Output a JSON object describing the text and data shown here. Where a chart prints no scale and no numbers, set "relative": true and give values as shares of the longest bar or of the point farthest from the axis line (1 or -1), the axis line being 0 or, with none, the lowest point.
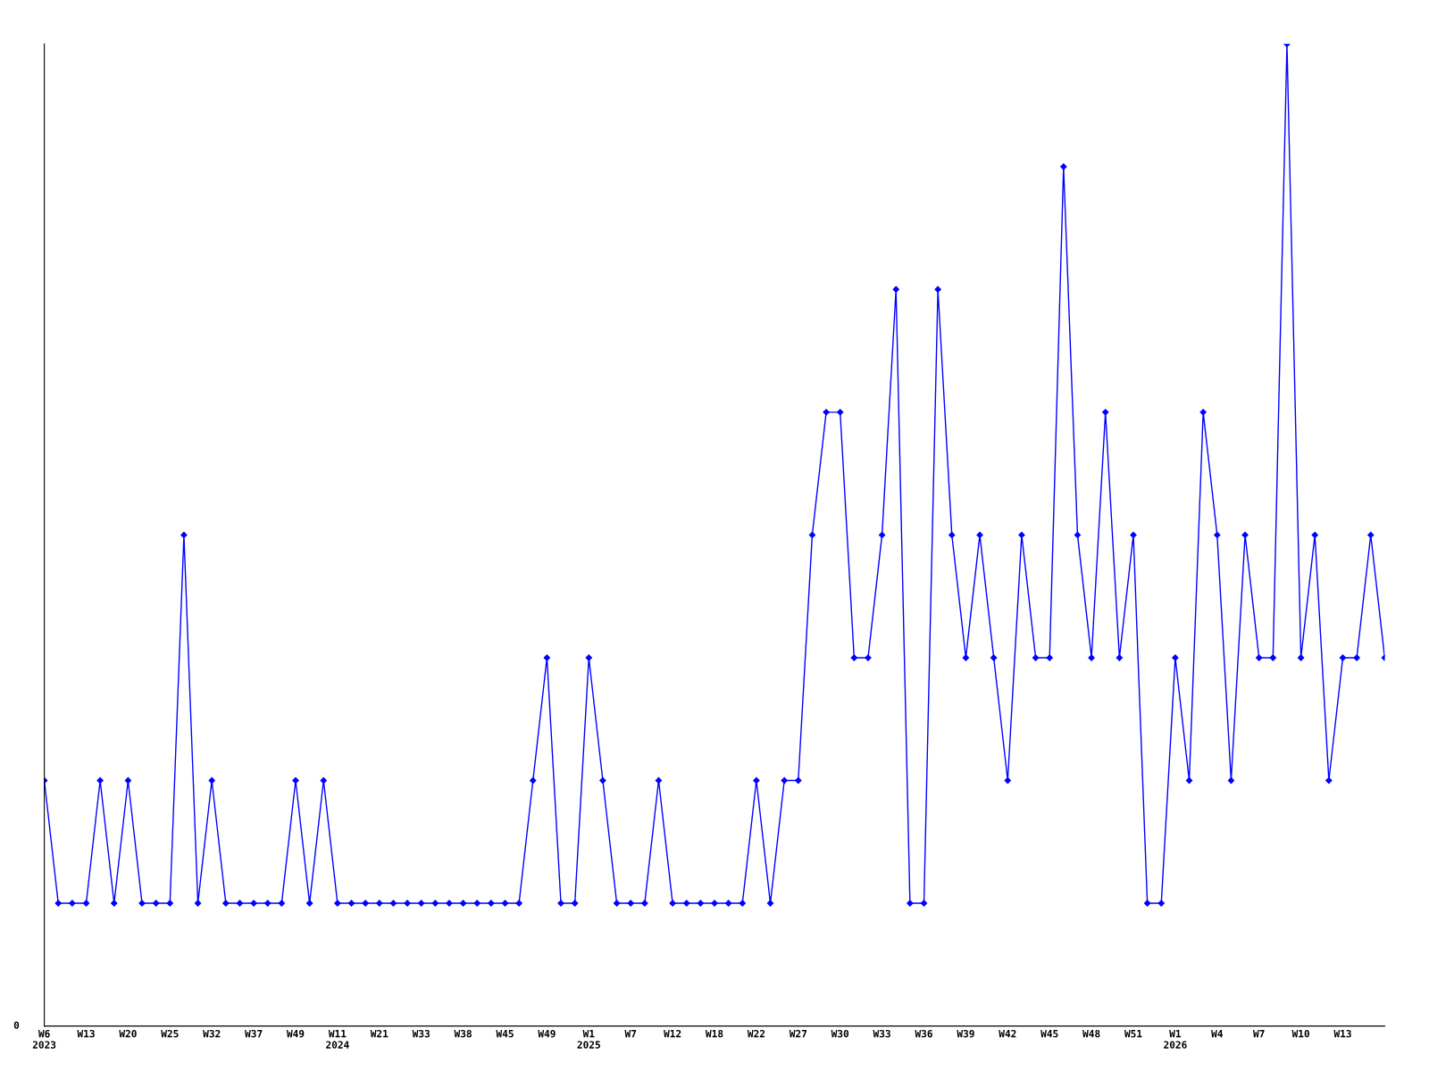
{
  "chart_data": {
    "type": "line",
    "relative": true,
    "marker": "diamond",
    "line_style": "solid",
    "grid": false,
    "legend": false,
    "annotations": [
      "0"
    ],
    "categories": [
      "W6\n2023",
      null,
      null,
      "W13",
      null,
      null,
      "W20",
      null,
      null,
      "W25",
      null,
      null,
      "W32",
      null,
      null,
      "W37",
      null,
      null,
      "W49",
      null,
      null,
      "W11\n2024",
      null,
      null,
      "W21",
      null,
      null,
      "W33",
      null,
      null,
      "W38",
      null,
      null,
      "W45",
      null,
      null,
      "W49",
      null,
      null,
      "W1\n2025",
      null,
      null,
      "W7",
      null,
      null,
      "W12",
      null,
      null,
      "W18",
      null,
      null,
      "W22",
      null,
      null,
      "W27",
      null,
      null,
      "W30",
      null,
      null,
      "W33",
      null,
      null,
      "W36",
      null,
      null,
      "W39",
      null,
      null,
      "W42",
      null,
      null,
      "W45",
      null,
      null,
      "W48",
      null,
      null,
      "W51",
      null,
      null,
      "W1\n2026",
      null,
      null,
      "W4",
      null,
      null,
      "W7",
      null,
      null,
      "W10",
      null,
      null,
      "W13",
      null,
      null,
      null
    ],
    "series": [
      {
        "color": "#0000ff",
        "values": [
          0.25,
          0.125,
          0.125,
          0.125,
          0.25,
          0.125,
          0.25,
          0.125,
          0.125,
          0.125,
          0.5,
          0.125,
          0.25,
          0.125,
          0.125,
          0.125,
          0.125,
          0.125,
          0.25,
          0.125,
          0.25,
          0.125,
          0.125,
          0.125,
          0.125,
          0.125,
          0.125,
          0.125,
          0.125,
          0.125,
          0.125,
          0.125,
          0.125,
          0.125,
          0.125,
          0.25,
          0.375,
          0.125,
          0.125,
          0.375,
          0.25,
          0.125,
          0.125,
          0.125,
          0.25,
          0.125,
          0.125,
          0.125,
          0.125,
          0.125,
          0.125,
          0.25,
          0.125,
          0.25,
          0.25,
          0.5,
          0.625,
          0.625,
          0.375,
          0.375,
          0.5,
          0.75,
          0.125,
          0.125,
          0.75,
          0.5,
          0.375,
          0.5,
          0.375,
          0.25,
          0.5,
          0.375,
          0.375,
          0.875,
          0.5,
          0.375,
          0.625,
          0.375,
          0.5,
          0.125,
          0.125,
          0.375,
          0.25,
          0.625,
          0.5,
          0.25,
          0.5,
          0.375,
          0.375,
          1,
          0.375,
          0.5,
          0.25,
          0.375,
          0.375,
          0.5,
          0.375
        ]
      }
    ]
  }
}
